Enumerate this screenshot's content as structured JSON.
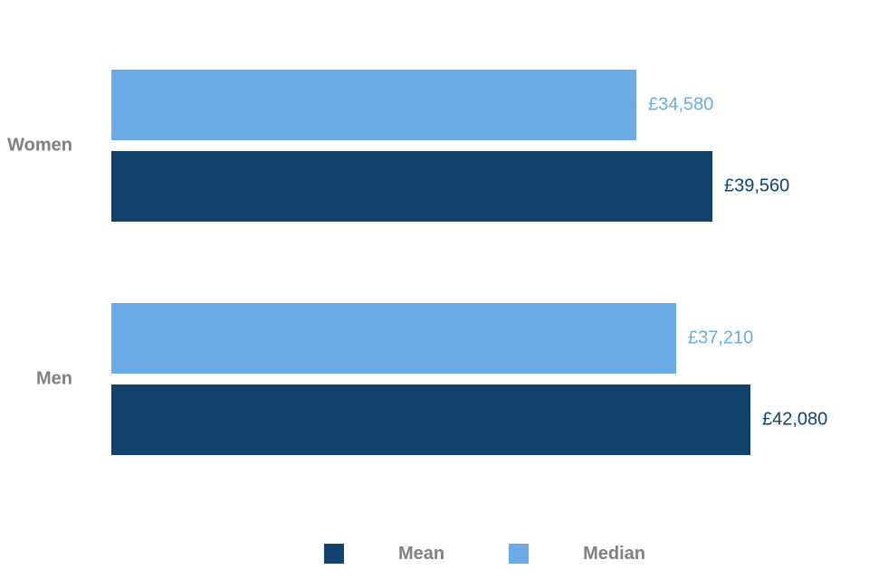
{
  "chart_data": {
    "type": "bar",
    "orientation": "horizontal",
    "title": "",
    "xlabel": "",
    "ylabel": "",
    "categories": [
      "Women",
      "Men"
    ],
    "series": [
      {
        "name": "Mean",
        "color": "#12436D",
        "values": [
          39560,
          42080
        ],
        "labels": [
          "£39,560",
          "£42,080"
        ]
      },
      {
        "name": "Median",
        "color": "#6BACE6",
        "values": [
          34580,
          37210
        ],
        "labels": [
          "£34,580",
          "£37,210"
        ]
      }
    ],
    "row_order": [
      1,
      0
    ],
    "xlim": [
      0,
      47500
    ],
    "grid": false,
    "axes_visible": false,
    "data_labels_visible": true,
    "legend_position": "bottom",
    "category_label_color": "#808080",
    "legend_label_color": "#808080",
    "background": "#FFFFFF"
  }
}
